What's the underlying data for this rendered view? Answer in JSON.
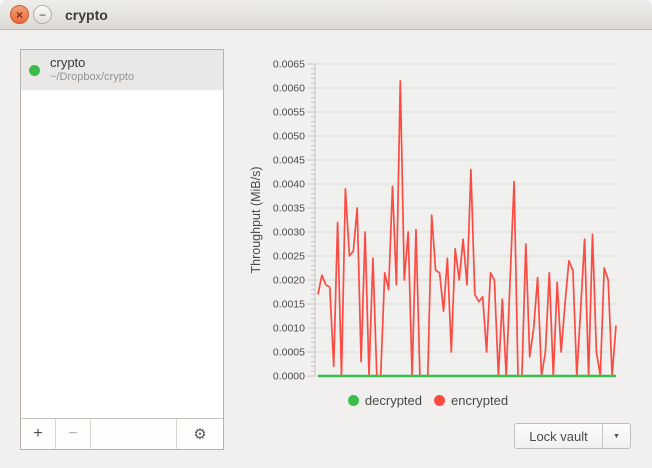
{
  "window": {
    "title": "crypto"
  },
  "icons": {
    "close": "×",
    "minimize": "−",
    "settings": "⚙",
    "dropdown": "▼"
  },
  "sidebar": {
    "vaults": [
      {
        "name": "crypto",
        "path": "~/Dropbox/crypto",
        "status_color": "#3bbd4b",
        "selected": true
      }
    ],
    "toolbar": {
      "add_label": "+",
      "remove_label": "−"
    }
  },
  "footer": {
    "lock_button_label": "Lock vault"
  },
  "chart_data": {
    "type": "line",
    "title": "",
    "xlabel": "",
    "ylabel": "Throughput (MiB/s)",
    "ylim": [
      0,
      0.0065
    ],
    "ytick_step": 0.0005,
    "ytick_decimals": 4,
    "x_axis": "unlabeled time axis, no x tick labels",
    "grid": "horizontal gridlines only",
    "legend_position": "bottom",
    "plot_bg": "#f0f0ef",
    "grid_color": "#dcdcdb",
    "tick_color": "#c6c5c3",
    "series": [
      {
        "name": "decrypted",
        "color": "#3bbd4b",
        "values": [
          0,
          0,
          0,
          0,
          0,
          0,
          0,
          0,
          0,
          0,
          0,
          0,
          0,
          0,
          0,
          0,
          0,
          0,
          0,
          0,
          0,
          0,
          0,
          0,
          0,
          0,
          0,
          0,
          0,
          0,
          0,
          0,
          0,
          0,
          0,
          0,
          0,
          0,
          0,
          0,
          0,
          0,
          0,
          0,
          0,
          0,
          0,
          0,
          0,
          0,
          0,
          0,
          0,
          0,
          0,
          0,
          0,
          0,
          0,
          0,
          0,
          0,
          0,
          0,
          0,
          0,
          0,
          0,
          0,
          0,
          0,
          0,
          0,
          0,
          0,
          0,
          0
        ]
      },
      {
        "name": "encrypted",
        "color": "#fb4b42",
        "values": [
          0.0017,
          0.0021,
          0.0019,
          0.00185,
          0.0002,
          0.0032,
          0,
          0.0039,
          0.0025,
          0.0026,
          0.0035,
          0.0003,
          0.003,
          0,
          0.00245,
          0,
          0,
          0.00215,
          0.0018,
          0.00395,
          0.0019,
          0.00615,
          0.002,
          0.003,
          0,
          0.00305,
          0,
          0,
          0,
          0.00335,
          0.0022,
          0.00215,
          0.00135,
          0.00245,
          0.0005,
          0.00265,
          0.002,
          0.00285,
          0.0019,
          0.0043,
          0.0017,
          0.00155,
          0.00165,
          0.0005,
          0.00215,
          0.002,
          0,
          0.0016,
          0,
          0.002,
          0.00405,
          0,
          0,
          0.00275,
          0.0004,
          0.001,
          0.00205,
          0,
          0.0005,
          0.00215,
          0,
          0.00195,
          0.0005,
          0.0015,
          0.0024,
          0.0022,
          0,
          0.0014,
          0.00285,
          0,
          0.00295,
          0.0005,
          0,
          0.00225,
          0.002,
          0,
          0.00105
        ]
      }
    ]
  }
}
